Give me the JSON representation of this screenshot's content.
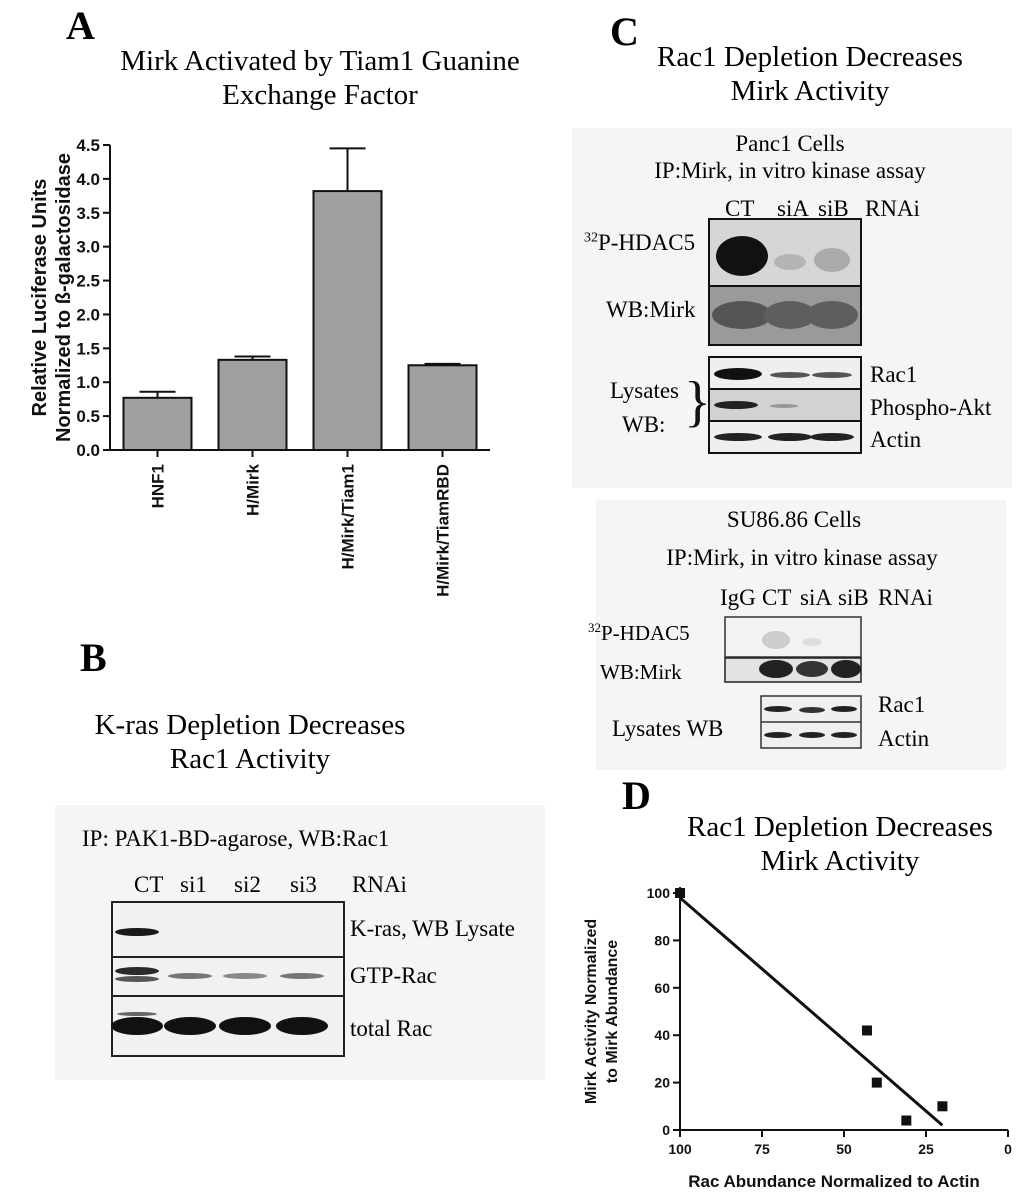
{
  "panel_a": {
    "letter": "A",
    "title_line1": "Mirk Activated by Tiam1 Guanine",
    "title_line2": "Exchange Factor"
  },
  "panel_b": {
    "letter": "B",
    "title_line1": "K-ras Depletion Decreases",
    "title_line2": "Rac1 Activity",
    "ip_label": "IP: PAK1-BD-agarose, WB:Rac1",
    "lanes": [
      "CT",
      "si1",
      "si2",
      "si3"
    ],
    "rnai": "RNAi",
    "row_labels": [
      "K-ras, WB Lysate",
      "GTP-Rac",
      "total Rac"
    ]
  },
  "panel_c": {
    "letter": "C",
    "title_line1": "Rac1 Depletion Decreases",
    "title_line2": "Mirk Activity",
    "top": {
      "cells": "Panc1 Cells",
      "assay": "IP:Mirk, in vitro kinase assay",
      "lanes": [
        "CT",
        "siA",
        "siB"
      ],
      "rnai": "RNAi",
      "hdac_sup": "32",
      "hdac": "P-HDAC5",
      "wb_mirk": "WB:Mirk",
      "lysates": "Lysates",
      "wb": "WB:",
      "rows": [
        "Rac1",
        "Phospho-Akt",
        "Actin"
      ]
    },
    "bottom": {
      "cells": "SU86.86 Cells",
      "assay": "IP:Mirk, in vitro kinase assay",
      "lanes": [
        "IgG",
        "CT",
        "siA",
        "siB"
      ],
      "rnai": "RNAi",
      "hdac_sup": "32",
      "hdac": "P-HDAC5",
      "wb_mirk": "WB:Mirk",
      "lysates": "Lysates WB",
      "rows": [
        "Rac1",
        "Actin"
      ]
    }
  },
  "panel_d": {
    "letter": "D",
    "title_line1": "Rac1 Depletion Decreases",
    "title_line2": "Mirk Activity"
  },
  "chart_data": [
    {
      "type": "bar",
      "title": "Mirk Activated by Tiam1 Guanine Exchange Factor",
      "ylabel": "Relative Luciferase Units Normalized to ß-galactosidase",
      "ylabel_line1": "Relative Luciferase Units",
      "ylabel_line2": "Normalized to ß-galactosidase",
      "categories": [
        "HNF1",
        "H/Mirk",
        "H/Mirk/Tiam1",
        "H/Mirk/TiamRBD"
      ],
      "values": [
        0.77,
        1.33,
        3.82,
        1.25
      ],
      "errors": [
        0.09,
        0.05,
        0.63,
        0.02
      ],
      "ylim": [
        0,
        4.5
      ],
      "yticks": [
        "0.0",
        "0.5",
        "1.0",
        "1.5",
        "2.0",
        "2.5",
        "3.0",
        "3.5",
        "4.0",
        "4.5"
      ],
      "bar_color": "#a0a0a0"
    },
    {
      "type": "scatter",
      "title": "Rac1 Depletion Decreases Mirk Activity",
      "xlabel": "Rac Abundance Normalized to Actin",
      "ylabel": "Mirk Activity Normalized to Mirk Abundance",
      "ylabel_line1": "Mirk Activity Normalized",
      "ylabel_line2": "to Mirk Abundance",
      "points": [
        [
          100,
          100
        ],
        [
          43,
          42
        ],
        [
          40,
          20
        ],
        [
          31,
          4
        ],
        [
          20,
          10
        ]
      ],
      "fit_line": [
        [
          100,
          98
        ],
        [
          20,
          2
        ]
      ],
      "xlim": [
        100,
        0
      ],
      "ylim": [
        0,
        100
      ],
      "xticks": [
        "100",
        "75",
        "50",
        "25",
        "0"
      ],
      "yticks": [
        "0",
        "20",
        "40",
        "60",
        "80",
        "100"
      ]
    }
  ]
}
